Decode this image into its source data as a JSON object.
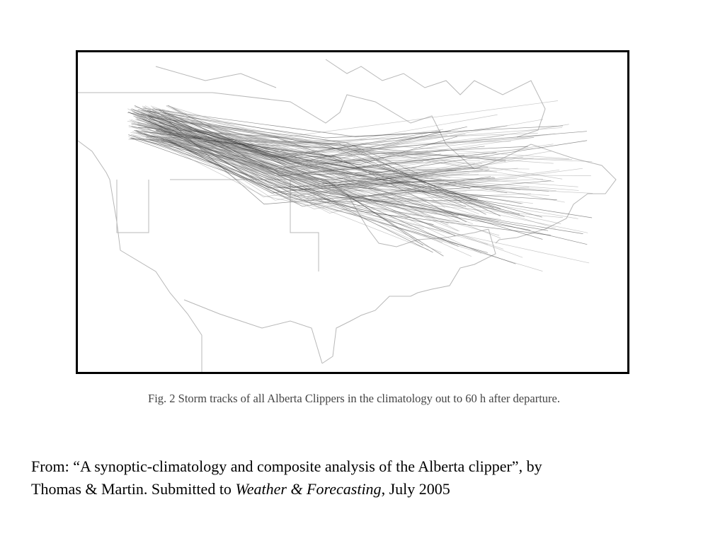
{
  "figure": {
    "caption": "Fig. 2  Storm tracks of all Alberta Clippers in the climatology out to 60 h after departure."
  },
  "source": {
    "line1": "From: “A synoptic-climatology and composite analysis of the Alberta clipper”, by",
    "line2_prefix": "Thomas & Martin. Submitted to ",
    "journal": "Weather & Forecasting",
    "line2_suffix": ", July 2005"
  }
}
